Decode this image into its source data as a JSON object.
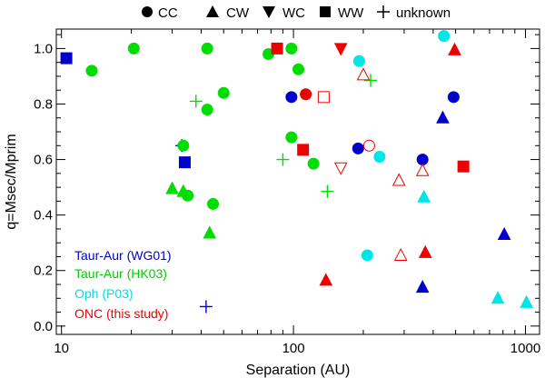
{
  "chart_data": {
    "type": "scatter",
    "title": "",
    "xlabel": "Separation (AU)",
    "ylabel": "q=Msec/Mprim",
    "xscale": "log",
    "xlim": [
      9.5,
      1150
    ],
    "ylim": [
      -0.03,
      1.07
    ],
    "x_ticks": [
      10,
      100,
      1000
    ],
    "x_tick_labels": [
      "10",
      "100",
      "1000"
    ],
    "y_ticks": [
      0.0,
      0.2,
      0.4,
      0.6,
      0.8,
      1.0
    ],
    "y_tick_labels": [
      "0.0",
      "0.2",
      "0.4",
      "0.6",
      "0.8",
      "1.0"
    ],
    "legend_position": "top",
    "legend": [
      {
        "label": "CC",
        "marker": "circle"
      },
      {
        "label": "CW",
        "marker": "triangle-up"
      },
      {
        "label": "WC",
        "marker": "triangle-down"
      },
      {
        "label": "WW",
        "marker": "square"
      },
      {
        "label": "unknown",
        "marker": "plus"
      }
    ],
    "series": [
      {
        "name": "Taur-Aur (WG01)",
        "color": "#0000cc",
        "points": [
          {
            "x": 10.5,
            "y": 0.965,
            "m": "square"
          },
          {
            "x": 34,
            "y": 0.59,
            "m": "square"
          },
          {
            "x": 33,
            "y": 0.65,
            "m": "plus"
          },
          {
            "x": 42,
            "y": 0.07,
            "m": "plus"
          },
          {
            "x": 98,
            "y": 0.825,
            "m": "circle"
          },
          {
            "x": 190,
            "y": 0.64,
            "m": "circle"
          },
          {
            "x": 360,
            "y": 0.6,
            "m": "circle"
          },
          {
            "x": 490,
            "y": 0.825,
            "m": "circle"
          },
          {
            "x": 440,
            "y": 0.75,
            "m": "triangle-up"
          },
          {
            "x": 360,
            "y": 0.14,
            "m": "triangle-up"
          },
          {
            "x": 810,
            "y": 0.33,
            "m": "triangle-up"
          }
        ]
      },
      {
        "name": "Taur-Aur (HK03)",
        "color": "#00dd00",
        "points": [
          {
            "x": 13.5,
            "y": 0.92,
            "m": "circle"
          },
          {
            "x": 20.5,
            "y": 1.0,
            "m": "circle"
          },
          {
            "x": 33.5,
            "y": 0.65,
            "m": "circle"
          },
          {
            "x": 42.5,
            "y": 1.0,
            "m": "circle"
          },
          {
            "x": 42.5,
            "y": 0.78,
            "m": "circle"
          },
          {
            "x": 50,
            "y": 0.84,
            "m": "circle"
          },
          {
            "x": 35,
            "y": 0.47,
            "m": "circle"
          },
          {
            "x": 45,
            "y": 0.44,
            "m": "circle"
          },
          {
            "x": 78,
            "y": 0.98,
            "m": "circle"
          },
          {
            "x": 98,
            "y": 1.0,
            "m": "circle"
          },
          {
            "x": 105,
            "y": 0.925,
            "m": "circle"
          },
          {
            "x": 98,
            "y": 0.68,
            "m": "circle"
          },
          {
            "x": 122,
            "y": 0.585,
            "m": "circle"
          },
          {
            "x": 30,
            "y": 0.495,
            "m": "triangle-up"
          },
          {
            "x": 33.5,
            "y": 0.485,
            "m": "triangle-up"
          },
          {
            "x": 43.5,
            "y": 0.335,
            "m": "triangle-up"
          },
          {
            "x": 38,
            "y": 0.81,
            "m": "plus"
          },
          {
            "x": 90,
            "y": 0.6,
            "m": "plus"
          },
          {
            "x": 140,
            "y": 0.485,
            "m": "plus"
          },
          {
            "x": 215,
            "y": 0.885,
            "m": "plus"
          }
        ]
      },
      {
        "name": "Oph (P03)",
        "color": "#00e5e5",
        "points": [
          {
            "x": 192,
            "y": 0.955,
            "m": "circle"
          },
          {
            "x": 235,
            "y": 0.61,
            "m": "circle"
          },
          {
            "x": 208,
            "y": 0.255,
            "m": "circle"
          },
          {
            "x": 445,
            "y": 1.045,
            "m": "circle"
          },
          {
            "x": 365,
            "y": 0.465,
            "m": "triangle-up"
          },
          {
            "x": 760,
            "y": 0.1,
            "m": "triangle-up"
          },
          {
            "x": 1010,
            "y": 0.085,
            "m": "triangle-up"
          }
        ]
      },
      {
        "name": "ONC (this study)",
        "color": "#ee0000",
        "points": [
          {
            "x": 85,
            "y": 1.0,
            "m": "square"
          },
          {
            "x": 110,
            "y": 0.635,
            "m": "square"
          },
          {
            "x": 540,
            "y": 0.575,
            "m": "square"
          },
          {
            "x": 135,
            "y": 0.825,
            "m": "square",
            "open": true
          },
          {
            "x": 113,
            "y": 0.835,
            "m": "circle"
          },
          {
            "x": 212,
            "y": 0.65,
            "m": "circle",
            "open": true
          },
          {
            "x": 160,
            "y": 1.0,
            "m": "triangle-down"
          },
          {
            "x": 160,
            "y": 0.57,
            "m": "triangle-down",
            "open": true
          },
          {
            "x": 495,
            "y": 0.995,
            "m": "triangle-up"
          },
          {
            "x": 200,
            "y": 0.905,
            "m": "triangle-up",
            "open": true
          },
          {
            "x": 285,
            "y": 0.525,
            "m": "triangle-up",
            "open": true
          },
          {
            "x": 360,
            "y": 0.56,
            "m": "triangle-up",
            "open": true
          },
          {
            "x": 290,
            "y": 0.255,
            "m": "triangle-up",
            "open": true
          },
          {
            "x": 370,
            "y": 0.265,
            "m": "triangle-up"
          },
          {
            "x": 138,
            "y": 0.165,
            "m": "triangle-up"
          }
        ]
      }
    ]
  }
}
